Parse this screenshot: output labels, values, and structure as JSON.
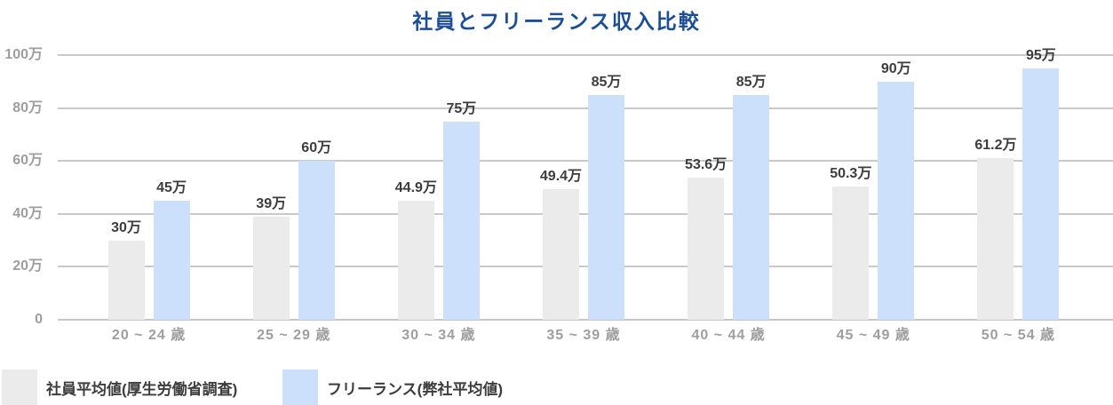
{
  "title": "社員とフリーランス収入比較",
  "chart_data": {
    "type": "bar",
    "title": "社員とフリーランス収入比較",
    "categories": [
      "20 ~ 24 歳",
      "25 ~ 29 歳",
      "30 ~ 34 歳",
      "35 ~ 39 歳",
      "40 ~ 44 歳",
      "45 ~ 49 歳",
      "50 ~ 54 歳"
    ],
    "series": [
      {
        "name": "社員平均値(厚生労働省調査)",
        "color": "#ebebeb",
        "values": [
          30,
          39,
          44.9,
          49.4,
          53.6,
          50.3,
          61.2
        ],
        "data_labels": [
          "30万",
          "39万",
          "44.9万",
          "49.4万",
          "53.6万",
          "50.3万",
          "61.2万"
        ]
      },
      {
        "name": "フリーランス(弊社平均値)",
        "color": "#cce0fb",
        "values": [
          45,
          60,
          75,
          85,
          85,
          90,
          95
        ],
        "data_labels": [
          "45万",
          "60万",
          "75万",
          "85万",
          "85万",
          "90万",
          "95万"
        ]
      }
    ],
    "y_ticks": [
      {
        "value": 0,
        "label": "0"
      },
      {
        "value": 20,
        "label": "20万"
      },
      {
        "value": 40,
        "label": "40万"
      },
      {
        "value": 60,
        "label": "60万"
      },
      {
        "value": 80,
        "label": "80万"
      },
      {
        "value": 100,
        "label": "100万"
      }
    ],
    "ylim": [
      0,
      100
    ],
    "unit": "万",
    "grid": true,
    "legend_position": "bottom-left"
  },
  "colors": {
    "title": "#1c4e96",
    "axis_text": "#9e9e9e",
    "data_label_text": "#3d3d3d",
    "legend_text": "#3d3d3d",
    "gridline": "#c9c9c9",
    "employee_bar": "#ebebeb",
    "freelance_bar": "#cce0fb",
    "background": "#ffffff"
  }
}
